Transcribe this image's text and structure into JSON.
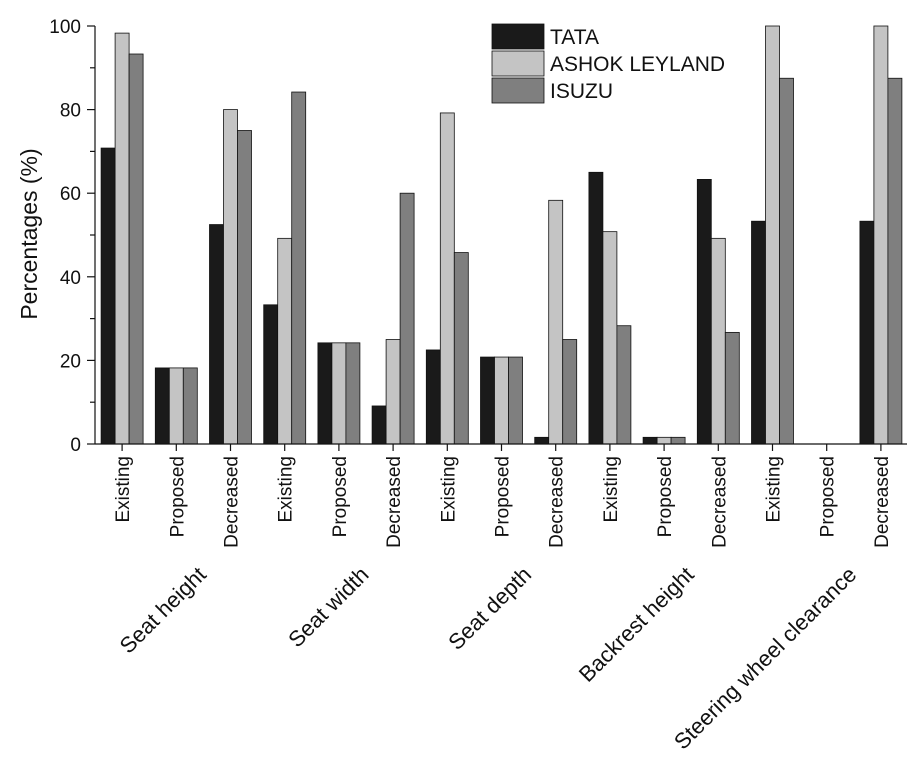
{
  "chart_data": {
    "type": "bar",
    "ylabel": "Percentages (%)",
    "ylim": [
      0,
      100
    ],
    "yticks": [
      0,
      20,
      40,
      60,
      80,
      100
    ],
    "grid": false,
    "legend_position": "top-right",
    "categories": [
      "Existing",
      "Proposed",
      "Decreased",
      "Existing",
      "Proposed",
      "Decreased",
      "Existing",
      "Proposed",
      "Decreased",
      "Existing",
      "Proposed",
      "Decreased",
      "Existing",
      "Proposed",
      "Decreased"
    ],
    "groups": [
      "Seat height",
      "Seat width",
      "Seat depth",
      "Backrest height",
      "Steering wheel clearance"
    ],
    "series": [
      {
        "name": "TATA",
        "color": "#1a1a1a",
        "values": [
          70.8,
          18.2,
          52.5,
          33.3,
          24.2,
          9.1,
          22.5,
          20.8,
          1.6,
          65.0,
          1.6,
          63.3,
          53.3,
          0,
          53.3
        ]
      },
      {
        "name": "ASHOK LEYLAND",
        "color": "#c4c4c4",
        "values": [
          98.3,
          18.2,
          80.0,
          49.2,
          24.2,
          25.0,
          79.2,
          20.8,
          58.3,
          50.8,
          1.6,
          49.2,
          100,
          0,
          100
        ]
      },
      {
        "name": "ISUZU",
        "color": "#7f7f7f",
        "values": [
          93.3,
          18.2,
          75.0,
          84.2,
          24.2,
          60.0,
          45.8,
          20.8,
          25.0,
          28.3,
          1.6,
          26.7,
          87.5,
          0,
          87.5
        ]
      }
    ]
  }
}
